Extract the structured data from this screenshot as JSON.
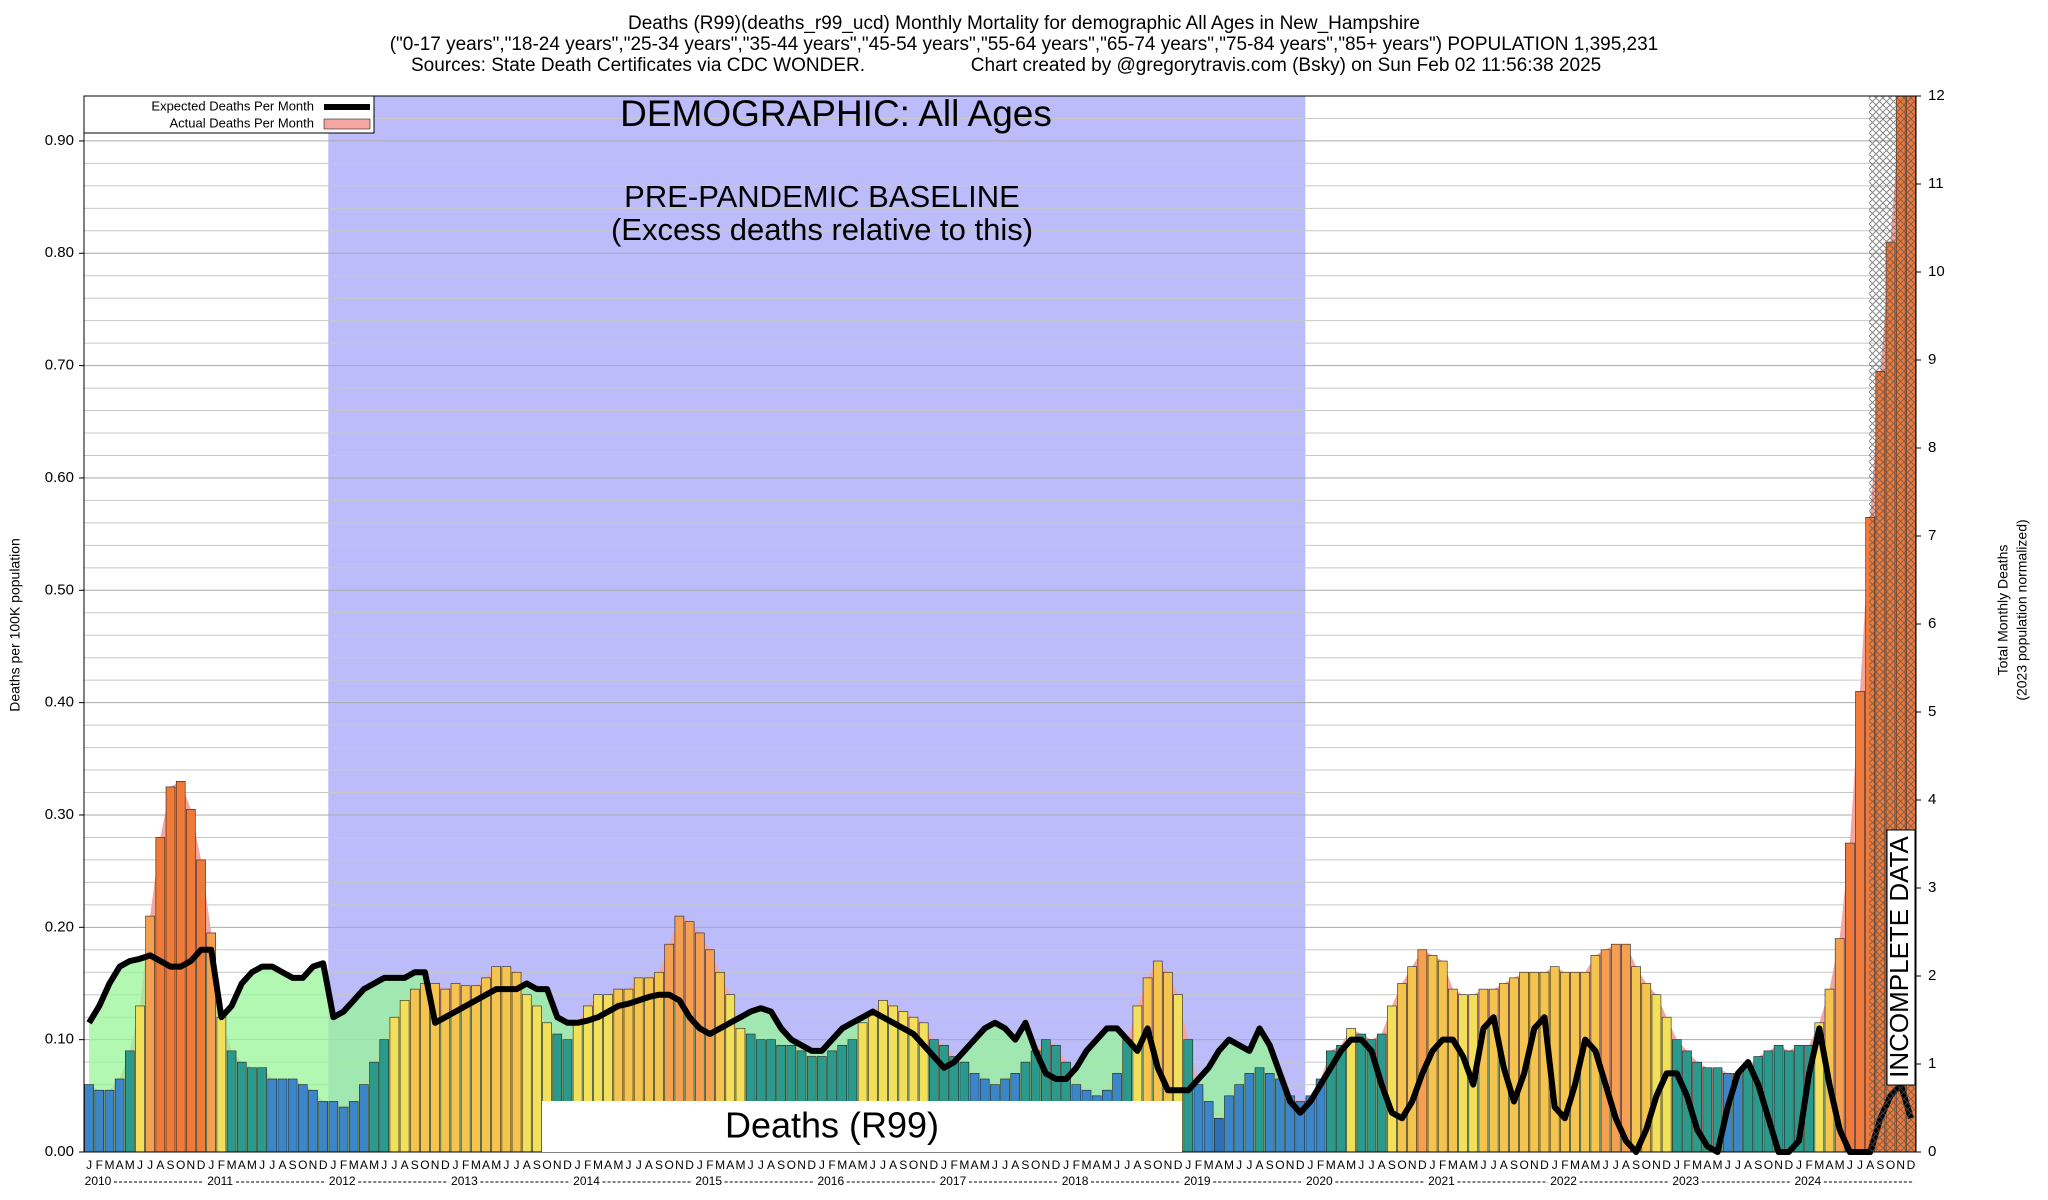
{
  "chart_data": {
    "type": "bar",
    "title_lines": [
      "Deaths (R99)(deaths_r99_ucd) Monthly Mortality for demographic All Ages in New_Hampshire",
      "(\"0-17 years\",\"18-24 years\",\"25-34 years\",\"35-44 years\",\"45-54 years\",\"55-64 years\",\"65-74 years\",\"75-84 years\",\"85+ years\") POPULATION 1,395,231"
    ],
    "sources": "Sources: State Death Certificates via CDC WONDER.",
    "credit": "Chart created by @gregorytravis.com (Bsky) on Sun Feb 02 11:56:38 2025",
    "ylabel": "Deaths per 100K population",
    "y2label_lines": [
      "Total Monthly Deaths",
      "(2023 population normalized)"
    ],
    "annotations": {
      "demographic": "DEMOGRAPHIC: All Ages",
      "baseline": "PRE-PANDEMIC BASELINE",
      "baseline_note": "(Excess deaths relative to this)",
      "cause": "Deaths (R99)",
      "incomplete": "INCOMPLETE DATA"
    },
    "months": [
      "J",
      "F",
      "M",
      "A",
      "M",
      "J",
      "J",
      "A",
      "S",
      "O",
      "N",
      "D"
    ],
    "years": [
      "2010",
      "2011",
      "2012",
      "2013",
      "2014",
      "2015",
      "2016",
      "2017",
      "2018",
      "2019",
      "2020",
      "2021",
      "2022",
      "2023",
      "2024"
    ],
    "ylim": [
      0,
      0.94
    ],
    "yticks": [
      {
        "value": 0,
        "label": "0.00"
      },
      {
        "value": 0.1,
        "label": "0.10"
      },
      {
        "value": 0.2,
        "label": "0.20"
      },
      {
        "value": 0.3,
        "label": "0.30"
      },
      {
        "value": 0.4,
        "label": "0.40"
      },
      {
        "value": 0.5,
        "label": "0.50"
      },
      {
        "value": 0.6,
        "label": "0.60"
      },
      {
        "value": 0.7,
        "label": "0.70"
      },
      {
        "value": 0.8,
        "label": "0.80"
      },
      {
        "value": 0.9,
        "label": "0.90"
      }
    ],
    "minor_yticks": [
      0.02,
      0.04,
      0.06,
      0.08,
      0.12,
      0.14,
      0.16,
      0.18,
      0.22,
      0.24,
      0.26,
      0.28,
      0.32,
      0.34,
      0.36,
      0.38,
      0.42,
      0.44,
      0.46,
      0.48,
      0.52,
      0.54,
      0.56,
      0.58,
      0.62,
      0.64,
      0.66,
      0.68,
      0.72,
      0.74,
      0.76,
      0.78,
      0.82,
      0.84,
      0.86,
      0.88,
      0.92
    ],
    "y2lim": [
      0,
      12
    ],
    "y2ticks": [
      0,
      1,
      2,
      3,
      4,
      5,
      6,
      7,
      8,
      9,
      10,
      11,
      12
    ],
    "grid": true,
    "legend": "upper left",
    "baseline_color": "#bcbcfb",
    "palette": [
      "#2f6fb5",
      "#3a86c8",
      "#2b9a8c",
      "#f2e05a",
      "#f5c44e",
      "#f5a050",
      "#f07a3a"
    ],
    "series": [
      {
        "name": "Actual Deaths Per Month",
        "color": "#f4a6a0",
        "values": [
          0.06,
          0.055,
          0.055,
          0.065,
          0.09,
          0.13,
          0.21,
          0.28,
          0.325,
          0.33,
          0.305,
          0.26,
          0.195,
          0.12,
          0.09,
          0.08,
          0.075,
          0.075,
          0.065,
          0.065,
          0.065,
          0.06,
          0.055,
          0.045,
          0.045,
          0.04,
          0.045,
          0.06,
          0.08,
          0.1,
          0.12,
          0.135,
          0.145,
          0.15,
          0.15,
          0.145,
          0.15,
          0.148,
          0.148,
          0.155,
          0.165,
          0.165,
          0.16,
          0.14,
          0.13,
          0.115,
          0.105,
          0.1,
          0.115,
          0.13,
          0.14,
          0.14,
          0.145,
          0.145,
          0.155,
          0.155,
          0.16,
          0.185,
          0.21,
          0.205,
          0.195,
          0.18,
          0.16,
          0.14,
          0.11,
          0.105,
          0.1,
          0.1,
          0.095,
          0.095,
          0.09,
          0.085,
          0.085,
          0.09,
          0.095,
          0.1,
          0.115,
          0.125,
          0.135,
          0.13,
          0.125,
          0.12,
          0.115,
          0.1,
          0.095,
          0.085,
          0.08,
          0.07,
          0.065,
          0.06,
          0.065,
          0.07,
          0.08,
          0.09,
          0.1,
          0.095,
          0.08,
          0.06,
          0.055,
          0.05,
          0.055,
          0.07,
          0.1,
          0.13,
          0.155,
          0.17,
          0.16,
          0.14,
          0.1,
          0.06,
          0.045,
          0.03,
          0.05,
          0.06,
          0.07,
          0.075,
          0.07,
          0.065,
          0.05,
          0.045,
          0.05,
          0.065,
          0.09,
          0.095,
          0.11,
          0.105,
          0.1,
          0.105,
          0.13,
          0.15,
          0.165,
          0.18,
          0.175,
          0.17,
          0.145,
          0.14,
          0.14,
          0.145,
          0.145,
          0.15,
          0.155,
          0.16,
          0.16,
          0.16,
          0.165,
          0.16,
          0.16,
          0.16,
          0.175,
          0.18,
          0.185,
          0.185,
          0.165,
          0.15,
          0.14,
          0.12,
          0.1,
          0.09,
          0.08,
          0.075,
          0.075,
          0.07,
          0.07,
          0.075,
          0.085,
          0.09,
          0.095,
          0.09,
          0.095,
          0.095,
          0.115,
          0.145,
          0.19,
          0.275,
          0.41,
          0.565,
          0.695,
          0.81,
          0.94,
          0.94
        ]
      },
      {
        "name": "Expected Deaths Per Month",
        "color": "#000000",
        "fill_color": "#98f598",
        "values": [
          0.115,
          0.13,
          0.15,
          0.165,
          0.17,
          0.172,
          0.175,
          0.17,
          0.165,
          0.165,
          0.17,
          0.18,
          0.18,
          0.12,
          0.13,
          0.15,
          0.16,
          0.165,
          0.165,
          0.16,
          0.155,
          0.155,
          0.165,
          0.168,
          0.12,
          0.125,
          0.135,
          0.145,
          0.15,
          0.155,
          0.155,
          0.155,
          0.16,
          0.16,
          0.115,
          0.12,
          0.125,
          0.13,
          0.135,
          0.14,
          0.145,
          0.145,
          0.145,
          0.15,
          0.145,
          0.145,
          0.12,
          0.115,
          0.115,
          0.117,
          0.12,
          0.125,
          0.13,
          0.132,
          0.135,
          0.138,
          0.14,
          0.14,
          0.135,
          0.12,
          0.11,
          0.105,
          0.11,
          0.115,
          0.12,
          0.125,
          0.128,
          0.125,
          0.11,
          0.1,
          0.095,
          0.09,
          0.09,
          0.1,
          0.11,
          0.115,
          0.12,
          0.125,
          0.12,
          0.115,
          0.11,
          0.105,
          0.095,
          0.085,
          0.075,
          0.08,
          0.09,
          0.1,
          0.11,
          0.115,
          0.11,
          0.1,
          0.115,
          0.09,
          0.07,
          0.065,
          0.065,
          0.075,
          0.09,
          0.1,
          0.11,
          0.11,
          0.1,
          0.09,
          0.11,
          0.075,
          0.055,
          0.055,
          0.055,
          0.065,
          0.075,
          0.09,
          0.1,
          0.095,
          0.09,
          0.11,
          0.095,
          0.07,
          0.045,
          0.035,
          0.045,
          0.06,
          0.075,
          0.09,
          0.1,
          0.1,
          0.09,
          0.06,
          0.035,
          0.03,
          0.045,
          0.07,
          0.09,
          0.1,
          0.1,
          0.085,
          0.06,
          0.11,
          0.12,
          0.075,
          0.045,
          0.07,
          0.11,
          0.12,
          0.04,
          0.03,
          0.06,
          0.1,
          0.09,
          0.06,
          0.03,
          0.01,
          0,
          0.02,
          0.05,
          0.07,
          0.07,
          0.05,
          0.02,
          0.005,
          0,
          0.04,
          0.07,
          0.08,
          0.06,
          0.03,
          0,
          0,
          0.01,
          0.07,
          0.11,
          0.06,
          0.02,
          0,
          0,
          0,
          0.03,
          0.05,
          0.06,
          0.03
        ]
      }
    ]
  }
}
